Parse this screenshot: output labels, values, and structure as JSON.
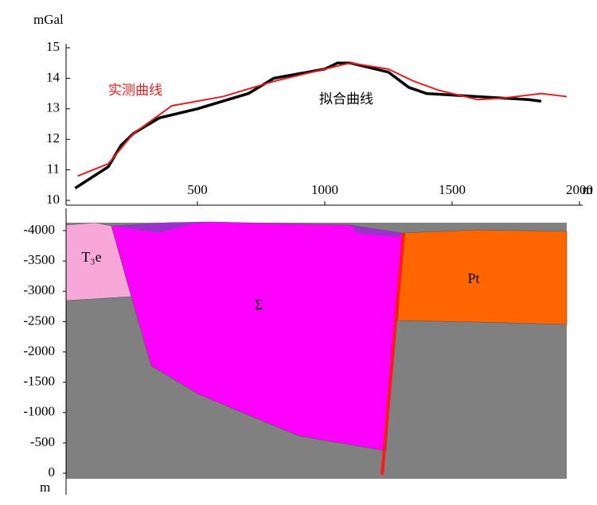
{
  "chart_data": [
    {
      "type": "line",
      "ylabel": "mGal",
      "xlabel": "m",
      "xlim": [
        0,
        2000
      ],
      "xticks": [
        500,
        1000,
        1500,
        2000
      ],
      "ylim": [
        10,
        15
      ],
      "yticks": [
        10,
        11,
        12,
        13,
        14,
        15
      ],
      "series": [
        {
          "name": "实测曲线",
          "color": "#e02020",
          "x": [
            30,
            150,
            250,
            400,
            600,
            800,
            1000,
            1100,
            1250,
            1350,
            1450,
            1600,
            1700,
            1850,
            1950
          ],
          "values": [
            10.8,
            11.2,
            12.2,
            13.1,
            13.4,
            13.9,
            14.3,
            14.5,
            14.3,
            13.9,
            13.6,
            13.3,
            13.35,
            13.5,
            13.4
          ]
        },
        {
          "name": "拟合曲线",
          "color": "#000000",
          "x": [
            20,
            150,
            200,
            250,
            350,
            500,
            700,
            800,
            1000,
            1050,
            1100,
            1250,
            1330,
            1400,
            1600,
            1800,
            1850
          ],
          "values": [
            10.4,
            11.1,
            11.8,
            12.2,
            12.7,
            13.0,
            13.5,
            14.0,
            14.3,
            14.5,
            14.5,
            14.2,
            13.7,
            13.5,
            13.4,
            13.3,
            13.25
          ]
        }
      ]
    },
    {
      "type": "section",
      "ylabel": "m",
      "ylim": [
        0,
        -4000
      ],
      "yticks": [
        -4000,
        -3500,
        -3000,
        -2500,
        -2000,
        -1500,
        -1000,
        -500,
        0
      ],
      "units": [
        {
          "name": "T₃e",
          "color": "#f7a8d8"
        },
        {
          "name": "Σ",
          "color": "#ff00ff"
        },
        {
          "name": "Pt",
          "color": "#ff6600"
        }
      ]
    }
  ]
}
